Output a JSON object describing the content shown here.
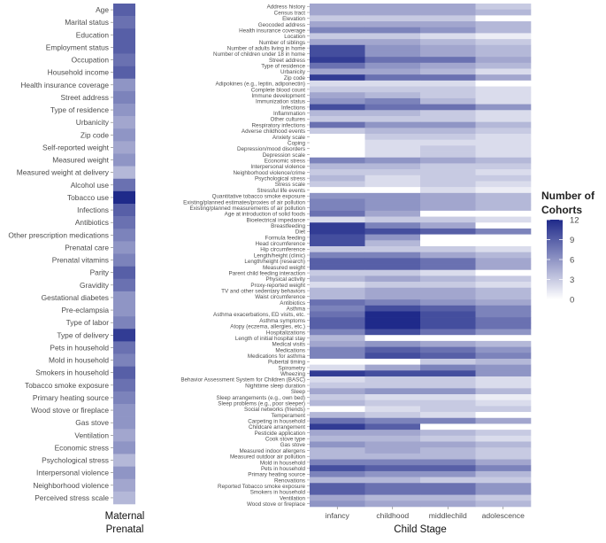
{
  "chart_data": [
    {
      "type": "heatmap",
      "title": "",
      "xlabel": "Maternal Prenatal",
      "ylabel": "",
      "x_categories": [
        ""
      ],
      "rows": [
        {
          "label": "Age",
          "values": [
            9
          ]
        },
        {
          "label": "Marital status",
          "values": [
            8
          ]
        },
        {
          "label": "Education",
          "values": [
            9
          ]
        },
        {
          "label": "Employment status",
          "values": [
            9
          ]
        },
        {
          "label": "Occupation",
          "values": [
            8
          ]
        },
        {
          "label": "Household income",
          "values": [
            9
          ]
        },
        {
          "label": "Health insurance coverage",
          "values": [
            6
          ]
        },
        {
          "label": "Street address",
          "values": [
            7
          ]
        },
        {
          "label": "Type of residence",
          "values": [
            6
          ]
        },
        {
          "label": "Urbanicity",
          "values": [
            5
          ]
        },
        {
          "label": "Zip code",
          "values": [
            6
          ]
        },
        {
          "label": "Self-reported weight",
          "values": [
            5
          ]
        },
        {
          "label": "Measured weight",
          "values": [
            6
          ]
        },
        {
          "label": "Measured weight at delivery",
          "values": [
            4
          ]
        },
        {
          "label": "Alcohol use",
          "values": [
            8
          ]
        },
        {
          "label": "Tobacco use",
          "values": [
            12
          ]
        },
        {
          "label": "Infections",
          "values": [
            9
          ]
        },
        {
          "label": "Antibiotics",
          "values": [
            8
          ]
        },
        {
          "label": "Other prescription medications",
          "values": [
            7
          ]
        },
        {
          "label": "Prenatal care",
          "values": [
            6
          ]
        },
        {
          "label": "Prenatal vitamins",
          "values": [
            7
          ]
        },
        {
          "label": "Parity",
          "values": [
            9
          ]
        },
        {
          "label": "Gravidity",
          "values": [
            8
          ]
        },
        {
          "label": "Gestational diabetes",
          "values": [
            6
          ]
        },
        {
          "label": "Pre-eclampsia",
          "values": [
            6
          ]
        },
        {
          "label": "Type of labor",
          "values": [
            7
          ]
        },
        {
          "label": "Type of delivery",
          "values": [
            11
          ]
        },
        {
          "label": "Pets in household",
          "values": [
            8
          ]
        },
        {
          "label": "Mold in household",
          "values": [
            7
          ]
        },
        {
          "label": "Smokers in household",
          "values": [
            9
          ]
        },
        {
          "label": "Tobacco smoke exposure",
          "values": [
            8
          ]
        },
        {
          "label": "Primary heating source",
          "values": [
            7
          ]
        },
        {
          "label": "Wood stove or fireplace",
          "values": [
            6
          ]
        },
        {
          "label": "Gas stove",
          "values": [
            6
          ]
        },
        {
          "label": "Ventilation",
          "values": [
            5
          ]
        },
        {
          "label": "Economic stress",
          "values": [
            6
          ]
        },
        {
          "label": "Psychological stress",
          "values": [
            4
          ]
        },
        {
          "label": "Interpersonal violence",
          "values": [
            6
          ]
        },
        {
          "label": "Neighborhood violence",
          "values": [
            5
          ]
        },
        {
          "label": "Perceived stress scale",
          "values": [
            4
          ]
        }
      ]
    },
    {
      "type": "heatmap",
      "title": "",
      "xlabel": "Child Stage",
      "ylabel": "",
      "x_categories": [
        "infancy",
        "childhood",
        "middlechild",
        "adolescence"
      ],
      "rows": [
        {
          "label": "Address history",
          "values": [
            5,
            5,
            5,
            3
          ]
        },
        {
          "label": "Census tract",
          "values": [
            5,
            5,
            5,
            4
          ]
        },
        {
          "label": "Elevation",
          "values": [
            3,
            3,
            3,
            0
          ]
        },
        {
          "label": "Geocoded address",
          "values": [
            5,
            5,
            5,
            4
          ]
        },
        {
          "label": "Health insurance coverage",
          "values": [
            7,
            7,
            6,
            4
          ]
        },
        {
          "label": "Location",
          "values": [
            3,
            3,
            2,
            1
          ]
        },
        {
          "label": "Number of siblings",
          "values": [
            5,
            5,
            4,
            3
          ]
        },
        {
          "label": "Number of adults living in home",
          "values": [
            10,
            6,
            5,
            4
          ]
        },
        {
          "label": "Number of children under 18 in home",
          "values": [
            10,
            6,
            5,
            4
          ]
        },
        {
          "label": "Street address",
          "values": [
            11,
            8,
            8,
            5
          ]
        },
        {
          "label": "Type of residence",
          "values": [
            8,
            6,
            5,
            4
          ]
        },
        {
          "label": "Urbanicity",
          "values": [
            5,
            5,
            4,
            2
          ]
        },
        {
          "label": "Zip code",
          "values": [
            11,
            8,
            8,
            5
          ]
        },
        {
          "label": "Adipokines (e.g., leptin, adiponectin)",
          "values": [
            2,
            2,
            2,
            0
          ]
        },
        {
          "label": "Complete blood count",
          "values": [
            3,
            3,
            3,
            2
          ]
        },
        {
          "label": "Immune development",
          "values": [
            5,
            4,
            3,
            2
          ]
        },
        {
          "label": "Immunization status",
          "values": [
            6,
            7,
            4,
            2
          ]
        },
        {
          "label": "Infections",
          "values": [
            10,
            8,
            8,
            6
          ]
        },
        {
          "label": "Inflammation",
          "values": [
            4,
            4,
            3,
            2
          ]
        },
        {
          "label": "Other cultures",
          "values": [
            3,
            3,
            3,
            2
          ]
        },
        {
          "label": "Respiratory infections",
          "values": [
            8,
            6,
            6,
            4
          ]
        },
        {
          "label": "Adverse childhood events",
          "values": [
            3,
            4,
            4,
            3
          ]
        },
        {
          "label": "Anxiety scale",
          "values": [
            0,
            3,
            3,
            2
          ]
        },
        {
          "label": "Coping",
          "values": [
            0,
            2,
            2,
            2
          ]
        },
        {
          "label": "Depression/mood disorders",
          "values": [
            0,
            2,
            3,
            2
          ]
        },
        {
          "label": "Depression scale",
          "values": [
            0,
            2,
            3,
            2
          ]
        },
        {
          "label": "Economic stress",
          "values": [
            7,
            6,
            5,
            4
          ]
        },
        {
          "label": "Interpersonal violence",
          "values": [
            4,
            4,
            3,
            3
          ]
        },
        {
          "label": "Neighborhood violence/crime",
          "values": [
            3,
            3,
            3,
            2
          ]
        },
        {
          "label": "Psychological stress",
          "values": [
            4,
            2,
            3,
            3
          ]
        },
        {
          "label": "Stress scale",
          "values": [
            3,
            2,
            3,
            2
          ]
        },
        {
          "label": "Stressful life events",
          "values": [
            0,
            0,
            2,
            1
          ]
        },
        {
          "label": "Quantitative tobacco smoke exposure",
          "values": [
            6,
            6,
            5,
            4
          ]
        },
        {
          "label": "Existing/planned estimates/proxies of air pollution",
          "values": [
            7,
            6,
            5,
            4
          ]
        },
        {
          "label": "Existing/planned measurements of air pollution",
          "values": [
            7,
            6,
            5,
            4
          ]
        },
        {
          "label": "Age at introduction of solid foods",
          "values": [
            8,
            5,
            0,
            0
          ]
        },
        {
          "label": "Bioelectrical impedance",
          "values": [
            2,
            3,
            3,
            2
          ]
        },
        {
          "label": "Breastfeeding",
          "values": [
            11,
            7,
            5,
            0
          ]
        },
        {
          "label": "Diet",
          "values": [
            11,
            10,
            9,
            7
          ]
        },
        {
          "label": "Formula feeding",
          "values": [
            10,
            6,
            0,
            0
          ]
        },
        {
          "label": "Head circumference",
          "values": [
            10,
            4,
            0,
            0
          ]
        },
        {
          "label": "Hip circumference",
          "values": [
            3,
            3,
            3,
            2
          ]
        },
        {
          "label": "Length/height (clinic)",
          "values": [
            7,
            7,
            5,
            4
          ]
        },
        {
          "label": "Length/height (research)",
          "values": [
            9,
            9,
            8,
            5
          ]
        },
        {
          "label": "Measured weight",
          "values": [
            9,
            9,
            8,
            5
          ]
        },
        {
          "label": "Parent child feeding interaction",
          "values": [
            3,
            3,
            2,
            0
          ]
        },
        {
          "label": "Physical activity",
          "values": [
            4,
            5,
            4,
            3
          ]
        },
        {
          "label": "Proxy-reported weight",
          "values": [
            2,
            3,
            3,
            2
          ]
        },
        {
          "label": "TV and other sedentary behaviors",
          "values": [
            4,
            5,
            5,
            4
          ]
        },
        {
          "label": "Waist circumference",
          "values": [
            4,
            5,
            5,
            4
          ]
        },
        {
          "label": "Antibiotics",
          "values": [
            8,
            7,
            6,
            5
          ]
        },
        {
          "label": "Asthma",
          "values": [
            7,
            10,
            9,
            7
          ]
        },
        {
          "label": "Asthma exacerbations, ED visits, etc.",
          "values": [
            8,
            12,
            10,
            7
          ]
        },
        {
          "label": "Asthma symptoms",
          "values": [
            9,
            12,
            10,
            8
          ]
        },
        {
          "label": "Atopy (eczema, allergies, etc.)",
          "values": [
            9,
            12,
            10,
            8
          ]
        },
        {
          "label": "Hospitalizations",
          "values": [
            7,
            10,
            8,
            6
          ]
        },
        {
          "label": "Length of initial hospital stay",
          "values": [
            4,
            0,
            0,
            0
          ]
        },
        {
          "label": "Medical visits",
          "values": [
            5,
            6,
            5,
            4
          ]
        },
        {
          "label": "Medications",
          "values": [
            7,
            9,
            8,
            6
          ]
        },
        {
          "label": "Medications for asthma",
          "values": [
            7,
            10,
            9,
            7
          ]
        },
        {
          "label": "Pubertal timing",
          "values": [
            0,
            0,
            3,
            4
          ]
        },
        {
          "label": "Spirometry",
          "values": [
            2,
            5,
            7,
            6
          ]
        },
        {
          "label": "Wheezing",
          "values": [
            11,
            10,
            10,
            6
          ]
        },
        {
          "label": "Behavior Assessment System for Children (BASC)",
          "values": [
            2,
            3,
            3,
            2
          ]
        },
        {
          "label": "Nighttime sleep duration",
          "values": [
            3,
            3,
            3,
            2
          ]
        },
        {
          "label": "Sleep",
          "values": [
            5,
            6,
            6,
            4
          ]
        },
        {
          "label": "Sleep arrangements (e.g., own bed)",
          "values": [
            3,
            2,
            2,
            1
          ]
        },
        {
          "label": "Sleep problems (e.g., poor sleeper)",
          "values": [
            4,
            3,
            3,
            2
          ]
        },
        {
          "label": "Social networks (friends)",
          "values": [
            0,
            2,
            3,
            3
          ]
        },
        {
          "label": "Temperament",
          "values": [
            4,
            3,
            2,
            0
          ]
        },
        {
          "label": "Carpeting in household",
          "values": [
            8,
            7,
            7,
            5
          ]
        },
        {
          "label": "Childcare arrangement",
          "values": [
            11,
            9,
            0,
            0
          ]
        },
        {
          "label": "Pesticide application",
          "values": [
            5,
            5,
            4,
            3
          ]
        },
        {
          "label": "Cook stove type",
          "values": [
            4,
            4,
            3,
            2
          ]
        },
        {
          "label": "Gas stove",
          "values": [
            6,
            5,
            5,
            4
          ]
        },
        {
          "label": "Measured indoor allergens",
          "values": [
            4,
            5,
            4,
            3
          ]
        },
        {
          "label": "Measured outdoor air pollution",
          "values": [
            4,
            4,
            4,
            3
          ]
        },
        {
          "label": "Mold in household",
          "values": [
            7,
            7,
            7,
            5
          ]
        },
        {
          "label": "Pets in household",
          "values": [
            10,
            9,
            9,
            7
          ]
        },
        {
          "label": "Primary heating source",
          "values": [
            7,
            6,
            6,
            4
          ]
        },
        {
          "label": "Renovations",
          "values": [
            4,
            4,
            3,
            3
          ]
        },
        {
          "label": "Reported Tobacco smoke exposure",
          "values": [
            9,
            8,
            8,
            6
          ]
        },
        {
          "label": "Smokers in household",
          "values": [
            9,
            8,
            8,
            6
          ]
        },
        {
          "label": "Ventilation",
          "values": [
            5,
            4,
            4,
            3
          ]
        },
        {
          "label": "Wood stove or fireplace",
          "values": [
            6,
            5,
            5,
            4
          ]
        }
      ]
    }
  ],
  "legend": {
    "title_line1": "Number of",
    "title_line2": "Cohorts",
    "range": [
      0,
      12
    ],
    "ticks": [
      12,
      9,
      6,
      3,
      0
    ],
    "low_color": "#ffffff",
    "high_color": "#1f2a8a"
  }
}
